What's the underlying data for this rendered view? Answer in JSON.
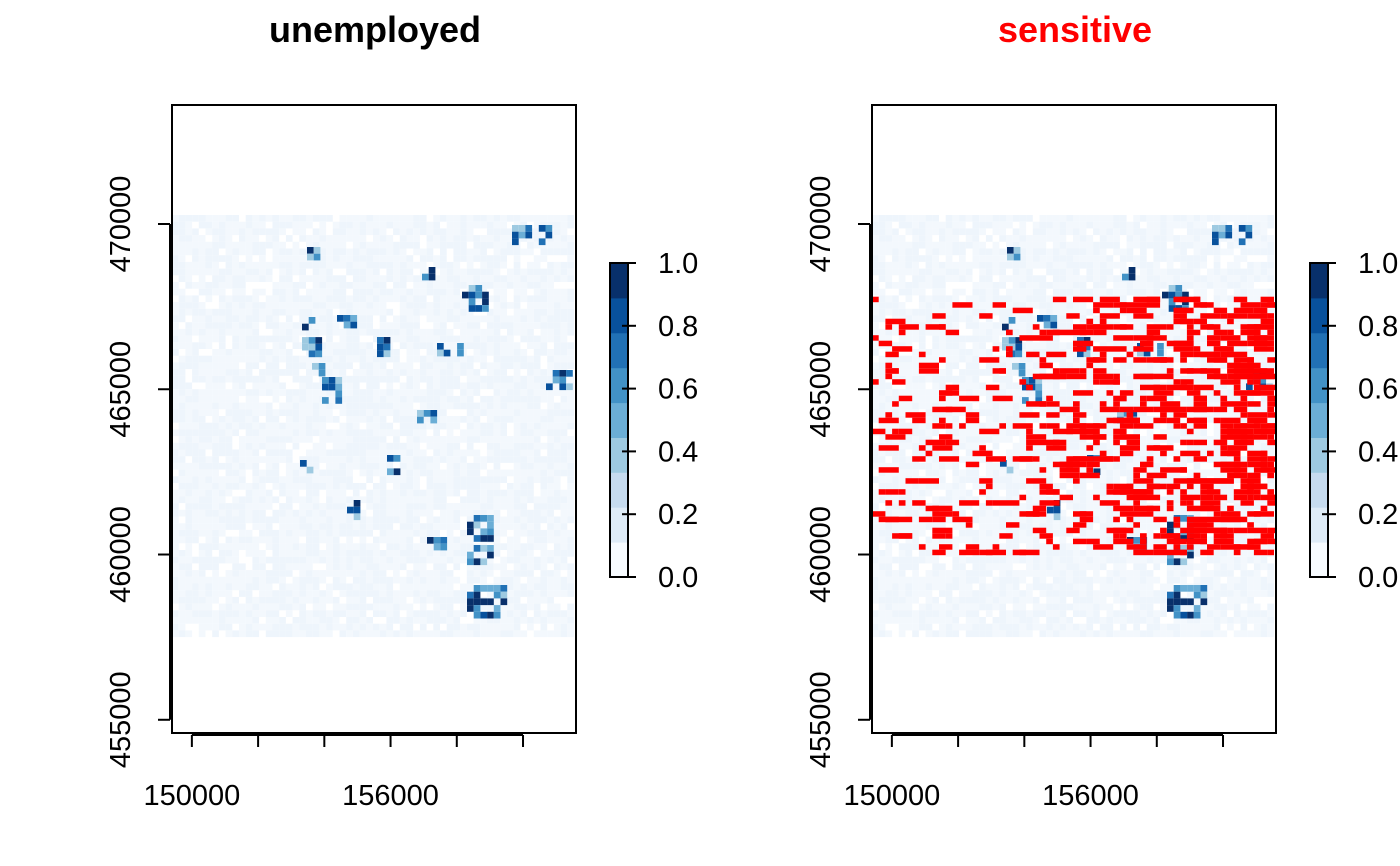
{
  "chart_data": [
    {
      "type": "heatmap",
      "title": "unemployed",
      "title_color": "#000000",
      "xlim": [
        149400,
        161600
      ],
      "ylim": [
        454600,
        473600
      ],
      "x_ticks": [
        150000,
        152000,
        154000,
        156000,
        158000,
        160000
      ],
      "x_tick_labels": [
        "150000",
        "",
        "",
        "156000",
        "",
        ""
      ],
      "y_ticks": [
        455000,
        460000,
        465000,
        470000
      ],
      "y_tick_labels": [
        "455000",
        "460000",
        "465000",
        "470000"
      ],
      "legend": {
        "placement": "right",
        "ticks": [
          "0.0",
          "0.2",
          "0.4",
          "0.6",
          "0.8",
          "1.0"
        ],
        "colors": [
          "#F7FBFF",
          "#DEEBF7",
          "#C6DBEF",
          "#9ECAE1",
          "#6BAED6",
          "#4292C6",
          "#2171B5",
          "#08519C",
          "#08306B"
        ]
      },
      "value_range": [
        0,
        1
      ],
      "overlay": null
    },
    {
      "type": "heatmap",
      "title": "sensitive",
      "title_color": "#FF0000",
      "xlim": [
        149400,
        161600
      ],
      "ylim": [
        454600,
        473600
      ],
      "x_ticks": [
        150000,
        152000,
        154000,
        156000,
        158000,
        160000
      ],
      "x_tick_labels": [
        "150000",
        "",
        "",
        "156000",
        "",
        ""
      ],
      "y_ticks": [
        455000,
        460000,
        465000,
        470000
      ],
      "y_tick_labels": [
        "455000",
        "460000",
        "465000",
        "470000"
      ],
      "legend": {
        "placement": "right",
        "ticks": [
          "0.0",
          "0.2",
          "0.4",
          "0.6",
          "0.8",
          "1.0"
        ],
        "colors": [
          "#F7FBFF",
          "#DEEBF7",
          "#C6DBEF",
          "#9ECAE1",
          "#6BAED6",
          "#4292C6",
          "#2171B5",
          "#08519C",
          "#08306B"
        ]
      },
      "value_range": [
        0,
        1
      ],
      "overlay": {
        "color": "#FF0000",
        "y_range": [
          460000,
          467800
        ]
      }
    }
  ]
}
